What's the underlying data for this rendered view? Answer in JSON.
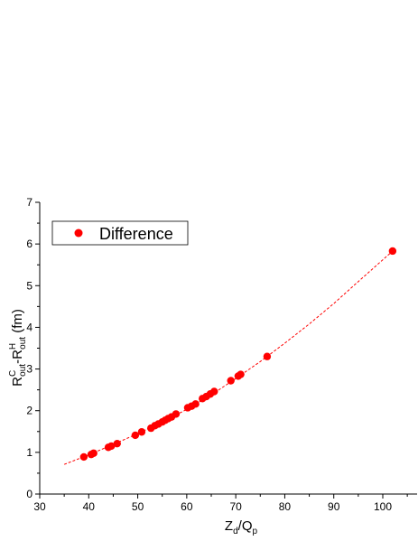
{
  "chart_data": {
    "type": "scatter",
    "xlabel": {
      "main": "Z",
      "sub1": "d",
      "slash": "/Q",
      "sub2": "p"
    },
    "ylabel": {
      "r1": "R",
      "sup1": "C",
      "sub1": "out",
      "dash": "-R",
      "sup2": "H",
      "sub2": "out",
      "unit": " (fm)"
    },
    "xlim": [
      30,
      107
    ],
    "ylim": [
      0,
      7
    ],
    "x_ticks": [
      30,
      40,
      50,
      60,
      70,
      80,
      90,
      100
    ],
    "y_ticks": [
      0,
      1,
      2,
      3,
      4,
      5,
      6,
      7
    ],
    "x_tick_labels": [
      "30",
      "40",
      "50",
      "60",
      "70",
      "80",
      "90",
      "100"
    ],
    "y_tick_labels": [
      "0",
      "1",
      "2",
      "3",
      "4",
      "5",
      "6",
      "7"
    ],
    "grid": false,
    "legend": {
      "position": "top-left",
      "entries": [
        "Difference"
      ]
    },
    "series": [
      {
        "name": "Difference",
        "color": "#ff0000",
        "marker": "circle",
        "points": [
          [
            39.0,
            0.89
          ],
          [
            40.5,
            0.95
          ],
          [
            41.0,
            0.98
          ],
          [
            44.0,
            1.12
          ],
          [
            44.6,
            1.15
          ],
          [
            45.8,
            1.21
          ],
          [
            49.5,
            1.41
          ],
          [
            50.8,
            1.49
          ],
          [
            52.7,
            1.58
          ],
          [
            53.5,
            1.64
          ],
          [
            54.2,
            1.68
          ],
          [
            55.0,
            1.73
          ],
          [
            55.6,
            1.77
          ],
          [
            56.2,
            1.81
          ],
          [
            56.9,
            1.85
          ],
          [
            57.8,
            1.92
          ],
          [
            60.2,
            2.07
          ],
          [
            61.0,
            2.11
          ],
          [
            61.8,
            2.16
          ],
          [
            63.2,
            2.29
          ],
          [
            64.0,
            2.34
          ],
          [
            64.8,
            2.4
          ],
          [
            65.6,
            2.46
          ],
          [
            69.0,
            2.72
          ],
          [
            70.5,
            2.83
          ],
          [
            71.0,
            2.87
          ],
          [
            76.4,
            3.3
          ],
          [
            102.0,
            5.83
          ]
        ]
      }
    ],
    "fit_line": {
      "style": "dashed",
      "color": "#ff0000",
      "points": [
        [
          35,
          0.71
        ],
        [
          40,
          0.94
        ],
        [
          45,
          1.19
        ],
        [
          50,
          1.45
        ],
        [
          55,
          1.73
        ],
        [
          60,
          2.03
        ],
        [
          65,
          2.38
        ],
        [
          70,
          2.77
        ],
        [
          75,
          3.18
        ],
        [
          80,
          3.62
        ],
        [
          85,
          4.08
        ],
        [
          90,
          4.57
        ],
        [
          95,
          5.1
        ],
        [
          102,
          5.83
        ]
      ]
    }
  }
}
